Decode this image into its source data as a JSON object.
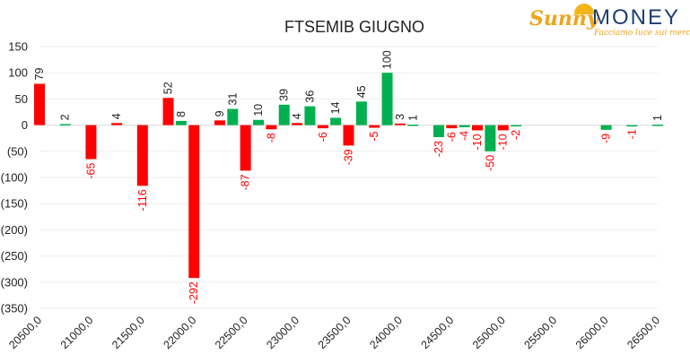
{
  "logo": {
    "brand_left": "Sunny",
    "brand_right": "MONEY",
    "tagline": "Facciamo luce sui mercati"
  },
  "chart_data": {
    "type": "bar",
    "title": "FTSEMIB GIUGNO",
    "xlabel": "",
    "ylabel": "",
    "ylim": [
      -350,
      150
    ],
    "yticks": [
      150,
      100,
      50,
      0,
      -50,
      -100,
      -150,
      -200,
      -250,
      -300,
      -350
    ],
    "ytick_labels": [
      "150",
      "100",
      "50",
      "0",
      "(50)",
      "(100)",
      "(150)",
      "(200)",
      "(250)",
      "(300)",
      "(350)"
    ],
    "x_tick_labels": [
      "20500,0",
      "21000,0",
      "21500,0",
      "22000,0",
      "22500,0",
      "23000,0",
      "23500,0",
      "24000,0",
      "24500,0",
      "25000,0",
      "25500,0",
      "26000,0",
      "26500,0"
    ],
    "grid": true,
    "colors": {
      "negative": "#ff0000",
      "positive": "#00b050",
      "axis_text": "#222222"
    },
    "bars": [
      {
        "strike": 20500,
        "value": 79,
        "color": "red"
      },
      {
        "strike": 20750,
        "value": 2,
        "color": "green"
      },
      {
        "strike": 21000,
        "value": -65,
        "color": "red"
      },
      {
        "strike": 21250,
        "value": 4,
        "color": "red"
      },
      {
        "strike": 21500,
        "value": -116,
        "color": "red"
      },
      {
        "strike": 21750,
        "value": 52,
        "color": "red"
      },
      {
        "strike": 21875,
        "value": 8,
        "color": "green"
      },
      {
        "strike": 22000,
        "value": -292,
        "color": "red"
      },
      {
        "strike": 22250,
        "value": 9,
        "color": "red"
      },
      {
        "strike": 22375,
        "value": 31,
        "color": "green"
      },
      {
        "strike": 22500,
        "value": -87,
        "color": "red"
      },
      {
        "strike": 22625,
        "value": 10,
        "color": "green"
      },
      {
        "strike": 22750,
        "value": -8,
        "color": "red"
      },
      {
        "strike": 22875,
        "value": 39,
        "color": "green"
      },
      {
        "strike": 23000,
        "value": 4,
        "color": "red"
      },
      {
        "strike": 23125,
        "value": 36,
        "color": "green"
      },
      {
        "strike": 23250,
        "value": -6,
        "color": "red"
      },
      {
        "strike": 23375,
        "value": 14,
        "color": "green"
      },
      {
        "strike": 23500,
        "value": -39,
        "color": "red"
      },
      {
        "strike": 23625,
        "value": 45,
        "color": "green"
      },
      {
        "strike": 23750,
        "value": -5,
        "color": "red"
      },
      {
        "strike": 23875,
        "value": 100,
        "color": "green"
      },
      {
        "strike": 24000,
        "value": 3,
        "color": "red"
      },
      {
        "strike": 24125,
        "value": 1,
        "color": "green"
      },
      {
        "strike": 24375,
        "value": -23,
        "color": "green"
      },
      {
        "strike": 24500,
        "value": -6,
        "color": "red"
      },
      {
        "strike": 24625,
        "value": -4,
        "color": "green"
      },
      {
        "strike": 24750,
        "value": -10,
        "color": "red"
      },
      {
        "strike": 24875,
        "value": -50,
        "color": "green"
      },
      {
        "strike": 25000,
        "value": -10,
        "color": "red"
      },
      {
        "strike": 25125,
        "value": -2,
        "color": "green"
      },
      {
        "strike": 26000,
        "value": -9,
        "color": "green"
      },
      {
        "strike": 26250,
        "value": -1,
        "color": "green"
      },
      {
        "strike": 26500,
        "value": 1,
        "color": "green"
      }
    ]
  }
}
